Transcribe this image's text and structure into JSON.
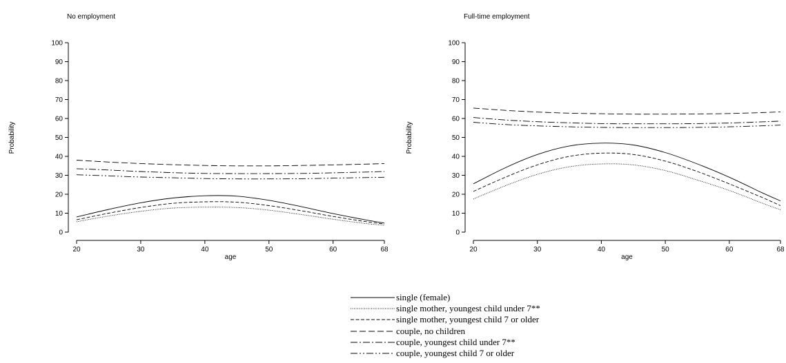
{
  "chart_data": [
    {
      "type": "line",
      "title": "No employment",
      "xlabel": "age",
      "ylabel": "Probability",
      "xlim": [
        20,
        68
      ],
      "ylim": [
        0,
        100
      ],
      "xticks": [
        20,
        30,
        40,
        50,
        60,
        68
      ],
      "yticks": [
        0,
        10,
        20,
        30,
        40,
        50,
        60,
        70,
        80,
        90,
        100
      ],
      "grid": false,
      "x": [
        20,
        25,
        30,
        35,
        40,
        45,
        50,
        55,
        60,
        65,
        68
      ],
      "series": [
        {
          "name": "single (female)",
          "style": "solid",
          "values": [
            8,
            12,
            15.5,
            18,
            19.2,
            19,
            16.8,
            13.5,
            9.8,
            6.5,
            4.8
          ]
        },
        {
          "name": "single mother, youngest child under 7**",
          "style": "dotted",
          "values": [
            5.5,
            8.5,
            11,
            12.7,
            13.2,
            13,
            11.6,
            9.3,
            6.8,
            4.6,
            3.6
          ]
        },
        {
          "name": "single mother, youngest child 7 or older",
          "style": "dashed-short",
          "values": [
            6.5,
            10,
            13,
            15.2,
            16,
            15.8,
            14,
            11.3,
            8.3,
            5.6,
            4.3
          ]
        },
        {
          "name": "couple, no children",
          "style": "dashed-long",
          "values": [
            38,
            37,
            36.2,
            35.6,
            35.2,
            35,
            35,
            35.2,
            35.5,
            35.9,
            36.2
          ]
        },
        {
          "name": "couple, youngest child under 7**",
          "style": "dash-dot",
          "values": [
            33.5,
            32.8,
            32,
            31.4,
            31,
            30.9,
            30.9,
            31,
            31.3,
            31.7,
            32
          ]
        },
        {
          "name": "couple, youngest child 7 or older",
          "style": "dash-dot-dot",
          "values": [
            30.3,
            29.7,
            29.1,
            28.7,
            28.3,
            28.1,
            28.1,
            28.2,
            28.5,
            28.8,
            29
          ]
        }
      ]
    },
    {
      "type": "line",
      "title": "Full-time employment",
      "xlabel": "age",
      "ylabel": "Probability",
      "xlim": [
        20,
        68
      ],
      "ylim": [
        0,
        100
      ],
      "xticks": [
        20,
        30,
        40,
        50,
        60,
        68
      ],
      "yticks": [
        0,
        10,
        20,
        30,
        40,
        50,
        60,
        70,
        80,
        90,
        100
      ],
      "grid": false,
      "x": [
        20,
        25,
        30,
        35,
        40,
        45,
        50,
        55,
        60,
        65,
        68
      ],
      "series": [
        {
          "name": "single (female)",
          "style": "solid",
          "values": [
            25.5,
            34,
            41,
            45.5,
            47,
            46,
            42,
            36,
            29,
            21,
            16.5
          ]
        },
        {
          "name": "single mother, youngest child under 7**",
          "style": "dotted",
          "values": [
            17.5,
            24.5,
            30.5,
            34.5,
            36,
            35.5,
            32.5,
            27.5,
            22,
            15.5,
            11.8
          ]
        },
        {
          "name": "single mother, youngest child 7 or older",
          "style": "dashed-short",
          "values": [
            21.5,
            29,
            35.5,
            40,
            41.7,
            41,
            37.5,
            32,
            25.5,
            18.5,
            14
          ]
        },
        {
          "name": "couple, no children",
          "style": "dashed-long",
          "values": [
            65.5,
            64.3,
            63.4,
            62.8,
            62.5,
            62.3,
            62.3,
            62.4,
            62.6,
            63.1,
            63.5
          ]
        },
        {
          "name": "couple, youngest child under 7**",
          "style": "dash-dot",
          "values": [
            60.5,
            59.2,
            58.3,
            57.7,
            57.3,
            57.2,
            57.2,
            57.3,
            57.6,
            58.2,
            58.6
          ]
        },
        {
          "name": "couple, youngest child 7 or older",
          "style": "dash-dot-dot",
          "values": [
            58,
            56.8,
            56.1,
            55.6,
            55.3,
            55.2,
            55.2,
            55.3,
            55.6,
            56.1,
            56.5
          ]
        }
      ]
    }
  ],
  "legend": {
    "placement": "bottom-center",
    "items": [
      {
        "label": "single (female)",
        "style": "solid"
      },
      {
        "label": "single mother, youngest child under 7**",
        "style": "dotted"
      },
      {
        "label": "single mother, youngest child 7 or older",
        "style": "dashed-short"
      },
      {
        "label": "couple, no children",
        "style": "dashed-long"
      },
      {
        "label": "couple, youngest child under 7**",
        "style": "dash-dot"
      },
      {
        "label": "couple, youngest child 7 or older",
        "style": "dash-dot-dot"
      }
    ]
  }
}
